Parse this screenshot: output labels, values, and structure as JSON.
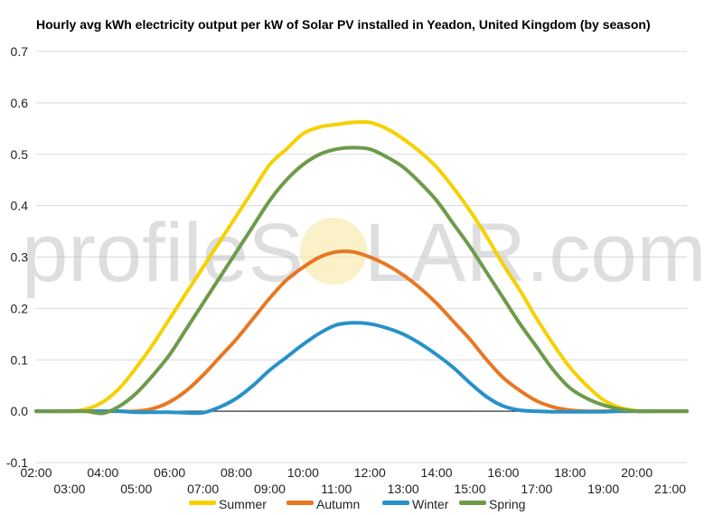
{
  "chart_data": {
    "type": "line",
    "title": "Hourly avg kWh electricity output per kW of Solar PV installed in Yeadon, United Kingdom (by season)",
    "xlabel": "",
    "ylabel": "",
    "ylim": [
      -0.1,
      0.7
    ],
    "yticks": [
      "-0.1",
      "0.0",
      "0.1",
      "0.2",
      "0.3",
      "0.4",
      "0.5",
      "0.6",
      "0.7"
    ],
    "xlim": [
      2,
      21.5
    ],
    "xticks": [
      "02:00",
      "03:00",
      "04:00",
      "05:00",
      "06:00",
      "07:00",
      "08:00",
      "09:00",
      "10:00",
      "11:00",
      "12:00",
      "13:00",
      "14:00",
      "15:00",
      "16:00",
      "17:00",
      "18:00",
      "19:00",
      "20:00",
      "21:00"
    ],
    "x": [
      2,
      2.5,
      3,
      3.5,
      4,
      4.5,
      5,
      5.5,
      6,
      6.5,
      7,
      7.5,
      8,
      8.5,
      9,
      9.5,
      10,
      10.5,
      11,
      11.5,
      12,
      12.5,
      13,
      13.5,
      14,
      14.5,
      15,
      15.5,
      16,
      16.5,
      17,
      17.5,
      18,
      18.5,
      19,
      19.5,
      20,
      20.5,
      21,
      21.5
    ],
    "grid": true,
    "legend_position": "bottom",
    "series": [
      {
        "name": "Summer",
        "color": "#f7d000",
        "values": [
          0,
          0,
          0,
          0.004,
          0.018,
          0.045,
          0.085,
          0.13,
          0.18,
          0.23,
          0.28,
          0.33,
          0.38,
          0.43,
          0.48,
          0.51,
          0.54,
          0.553,
          0.558,
          0.562,
          0.562,
          0.55,
          0.53,
          0.505,
          0.475,
          0.435,
          0.39,
          0.34,
          0.285,
          0.235,
          0.18,
          0.13,
          0.085,
          0.05,
          0.022,
          0.007,
          0.001,
          0,
          0,
          0
        ]
      },
      {
        "name": "Autumn",
        "color": "#e87722",
        "values": [
          0,
          0,
          0,
          0,
          0,
          0,
          0,
          0.005,
          0.018,
          0.04,
          0.07,
          0.105,
          0.14,
          0.18,
          0.22,
          0.255,
          0.28,
          0.3,
          0.31,
          0.31,
          0.3,
          0.285,
          0.265,
          0.24,
          0.21,
          0.175,
          0.14,
          0.1,
          0.065,
          0.04,
          0.02,
          0.008,
          0.002,
          0,
          0,
          0,
          0,
          0,
          0,
          0
        ]
      },
      {
        "name": "Winter",
        "color": "#2891c9",
        "values": [
          0,
          0,
          0,
          0,
          0,
          0,
          -0.002,
          -0.002,
          -0.002,
          -0.003,
          -0.003,
          0.008,
          0.025,
          0.05,
          0.08,
          0.105,
          0.13,
          0.152,
          0.168,
          0.172,
          0.17,
          0.162,
          0.15,
          0.132,
          0.11,
          0.085,
          0.055,
          0.028,
          0.01,
          0.002,
          0,
          -0.001,
          -0.001,
          -0.001,
          -0.001,
          0,
          0,
          0,
          0,
          0
        ]
      },
      {
        "name": "Spring",
        "color": "#6d9b4a",
        "values": [
          0,
          0,
          0,
          0,
          -0.004,
          0.01,
          0.035,
          0.07,
          0.11,
          0.16,
          0.21,
          0.26,
          0.31,
          0.36,
          0.41,
          0.45,
          0.48,
          0.5,
          0.51,
          0.513,
          0.51,
          0.495,
          0.475,
          0.445,
          0.41,
          0.365,
          0.32,
          0.27,
          0.22,
          0.17,
          0.125,
          0.08,
          0.045,
          0.025,
          0.012,
          0.004,
          0,
          0,
          0,
          0
        ]
      }
    ]
  },
  "watermark": {
    "left_text": "profileS",
    "right_text": "LAR.com"
  }
}
